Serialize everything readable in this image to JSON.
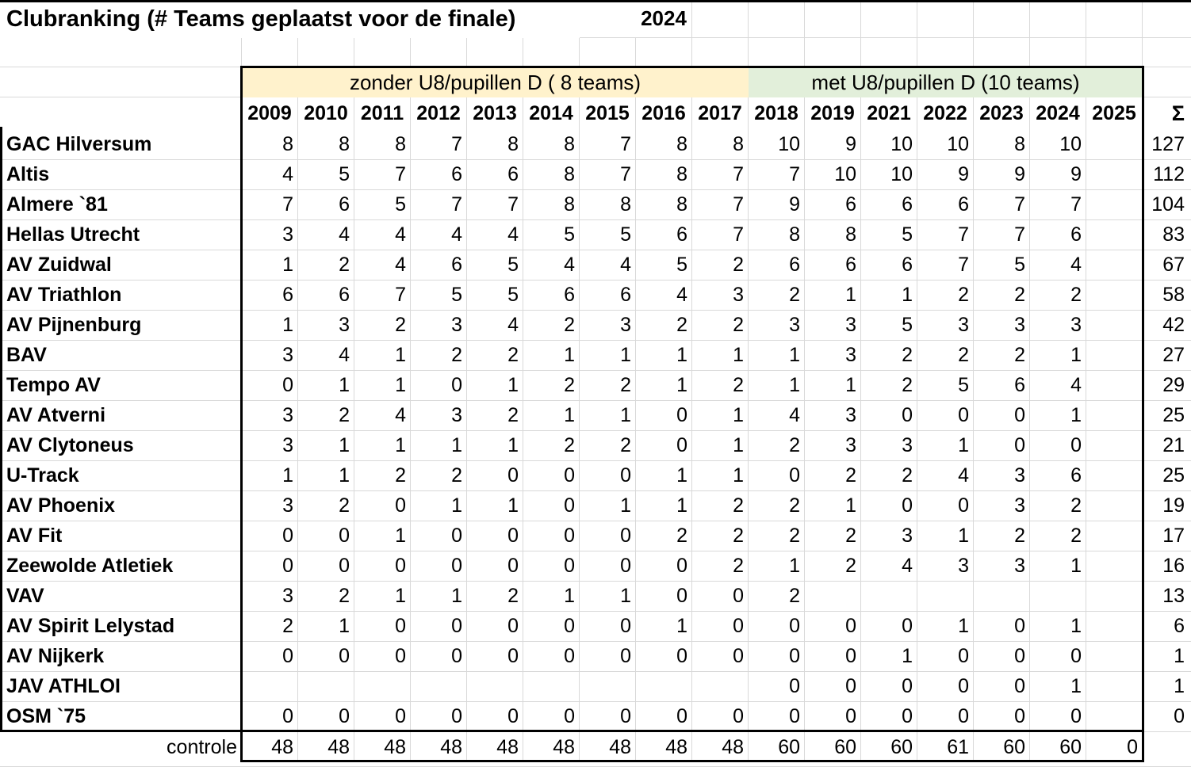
{
  "title": "Clubranking (# Teams geplaatst voor de finale)",
  "year_badge": "2024",
  "groups": {
    "left": "zonder U8/pupillen D ( 8 teams)",
    "right": "met U8/pupillen D (10 teams)"
  },
  "sum_symbol": "Σ",
  "years": [
    "2009",
    "2010",
    "2011",
    "2012",
    "2013",
    "2014",
    "2015",
    "2016",
    "2017",
    "2018",
    "2019",
    "2021",
    "2022",
    "2023",
    "2024",
    "2025"
  ],
  "colors": {
    "left_group_bg": "#FFF2CC",
    "right_group_bg": "#E2EFDA",
    "gridline": "#D9D9D9",
    "border": "#000000"
  },
  "rows": [
    {
      "name": "GAC Hilversum",
      "values": [
        "8",
        "8",
        "8",
        "7",
        "8",
        "8",
        "7",
        "8",
        "8",
        "10",
        "9",
        "10",
        "10",
        "8",
        "10",
        ""
      ],
      "sum": "127"
    },
    {
      "name": "Altis",
      "values": [
        "4",
        "5",
        "7",
        "6",
        "6",
        "8",
        "7",
        "8",
        "7",
        "7",
        "10",
        "10",
        "9",
        "9",
        "9",
        ""
      ],
      "sum": "112"
    },
    {
      "name": "Almere `81",
      "values": [
        "7",
        "6",
        "5",
        "7",
        "7",
        "8",
        "8",
        "8",
        "7",
        "9",
        "6",
        "6",
        "6",
        "7",
        "7",
        ""
      ],
      "sum": "104"
    },
    {
      "name": "Hellas Utrecht",
      "values": [
        "3",
        "4",
        "4",
        "4",
        "4",
        "5",
        "5",
        "6",
        "7",
        "8",
        "8",
        "5",
        "7",
        "7",
        "6",
        ""
      ],
      "sum": "83"
    },
    {
      "name": "AV Zuidwal",
      "values": [
        "1",
        "2",
        "4",
        "6",
        "5",
        "4",
        "4",
        "5",
        "2",
        "6",
        "6",
        "6",
        "7",
        "5",
        "4",
        ""
      ],
      "sum": "67"
    },
    {
      "name": "AV Triathlon",
      "values": [
        "6",
        "6",
        "7",
        "5",
        "5",
        "6",
        "6",
        "4",
        "3",
        "2",
        "1",
        "1",
        "2",
        "2",
        "2",
        ""
      ],
      "sum": "58"
    },
    {
      "name": "AV Pijnenburg",
      "values": [
        "1",
        "3",
        "2",
        "3",
        "4",
        "2",
        "3",
        "2",
        "2",
        "3",
        "3",
        "5",
        "3",
        "3",
        "3",
        ""
      ],
      "sum": "42"
    },
    {
      "name": "BAV",
      "values": [
        "3",
        "4",
        "1",
        "2",
        "2",
        "1",
        "1",
        "1",
        "1",
        "1",
        "3",
        "2",
        "2",
        "2",
        "1",
        ""
      ],
      "sum": "27"
    },
    {
      "name": "Tempo AV",
      "values": [
        "0",
        "1",
        "1",
        "0",
        "1",
        "2",
        "2",
        "1",
        "2",
        "1",
        "1",
        "2",
        "5",
        "6",
        "4",
        ""
      ],
      "sum": "29"
    },
    {
      "name": "AV Atverni",
      "values": [
        "3",
        "2",
        "4",
        "3",
        "2",
        "1",
        "1",
        "0",
        "1",
        "4",
        "3",
        "0",
        "0",
        "0",
        "1",
        ""
      ],
      "sum": "25"
    },
    {
      "name": "AV Clytoneus",
      "values": [
        "3",
        "1",
        "1",
        "1",
        "1",
        "2",
        "2",
        "0",
        "1",
        "2",
        "3",
        "3",
        "1",
        "0",
        "0",
        ""
      ],
      "sum": "21"
    },
    {
      "name": "U-Track",
      "values": [
        "1",
        "1",
        "2",
        "2",
        "0",
        "0",
        "0",
        "1",
        "1",
        "0",
        "2",
        "2",
        "4",
        "3",
        "6",
        ""
      ],
      "sum": "25"
    },
    {
      "name": "AV Phoenix",
      "values": [
        "3",
        "2",
        "0",
        "1",
        "1",
        "0",
        "1",
        "1",
        "2",
        "2",
        "1",
        "0",
        "0",
        "3",
        "2",
        ""
      ],
      "sum": "19"
    },
    {
      "name": "AV Fit",
      "values": [
        "0",
        "0",
        "1",
        "0",
        "0",
        "0",
        "0",
        "2",
        "2",
        "2",
        "2",
        "3",
        "1",
        "2",
        "2",
        ""
      ],
      "sum": "17"
    },
    {
      "name": "Zeewolde Atletiek",
      "values": [
        "0",
        "0",
        "0",
        "0",
        "0",
        "0",
        "0",
        "0",
        "2",
        "1",
        "2",
        "4",
        "3",
        "3",
        "1",
        ""
      ],
      "sum": "16"
    },
    {
      "name": "VAV",
      "values": [
        "3",
        "2",
        "1",
        "1",
        "2",
        "1",
        "1",
        "0",
        "0",
        "2",
        "",
        "",
        "",
        "",
        "",
        ""
      ],
      "sum": "13"
    },
    {
      "name": "AV Spirit Lelystad",
      "values": [
        "2",
        "1",
        "0",
        "0",
        "0",
        "0",
        "0",
        "1",
        "0",
        "0",
        "0",
        "0",
        "1",
        "0",
        "1",
        ""
      ],
      "sum": "6"
    },
    {
      "name": "AV Nijkerk",
      "values": [
        "0",
        "0",
        "0",
        "0",
        "0",
        "0",
        "0",
        "0",
        "0",
        "0",
        "0",
        "1",
        "0",
        "0",
        "0",
        ""
      ],
      "sum": "1"
    },
    {
      "name": "JAV ATHLOI",
      "values": [
        "",
        "",
        "",
        "",
        "",
        "",
        "",
        "",
        "",
        "0",
        "0",
        "0",
        "0",
        "0",
        "1",
        ""
      ],
      "sum": "1"
    },
    {
      "name": "OSM `75",
      "values": [
        "0",
        "0",
        "0",
        "0",
        "0",
        "0",
        "0",
        "0",
        "0",
        "0",
        "0",
        "0",
        "0",
        "0",
        "0",
        ""
      ],
      "sum": "0"
    }
  ],
  "controle": {
    "label": "controle",
    "values": [
      "48",
      "48",
      "48",
      "48",
      "48",
      "48",
      "48",
      "48",
      "48",
      "60",
      "60",
      "60",
      "61",
      "60",
      "60",
      "0"
    ],
    "sum": ""
  }
}
